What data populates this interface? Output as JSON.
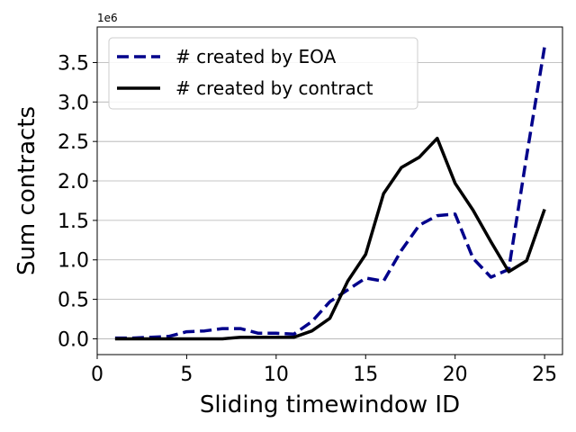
{
  "chart_data": {
    "type": "line",
    "xlabel": "Sliding timewindow ID",
    "ylabel": "Sum contracts",
    "y_offset_label": "1e6",
    "y_scale_factor": 1000000,
    "xlim": [
      0,
      26
    ],
    "ylim": [
      -0.2,
      3.95
    ],
    "x_ticks": [
      0,
      5,
      10,
      15,
      20,
      25
    ],
    "y_ticks": [
      0.0,
      0.5,
      1.0,
      1.5,
      2.0,
      2.5,
      3.0,
      3.5
    ],
    "x_tick_labels": [
      "0",
      "5",
      "10",
      "15",
      "20",
      "25"
    ],
    "y_tick_labels": [
      "0.0",
      "0.5",
      "1.0",
      "1.5",
      "2.0",
      "2.5",
      "3.0",
      "3.5"
    ],
    "grid": "horizontal",
    "legend_position": "top-left",
    "x": [
      1,
      2,
      3,
      4,
      5,
      6,
      7,
      8,
      9,
      10,
      11,
      12,
      13,
      14,
      15,
      16,
      17,
      18,
      19,
      20,
      21,
      22,
      23,
      24,
      25
    ],
    "series": [
      {
        "name": "# created by EOA",
        "color": "#00008b",
        "style": "dashed",
        "values": [
          0.01,
          0.01,
          0.02,
          0.03,
          0.09,
          0.1,
          0.13,
          0.13,
          0.07,
          0.07,
          0.06,
          0.22,
          0.47,
          0.62,
          0.77,
          0.73,
          1.12,
          1.44,
          1.56,
          1.58,
          1.02,
          0.78,
          0.88,
          2.32,
          3.7
        ]
      },
      {
        "name": "# created by contract",
        "color": "#000000",
        "style": "solid",
        "values": [
          0.0,
          0.0,
          0.0,
          0.0,
          0.0,
          0.0,
          0.0,
          0.02,
          0.02,
          0.02,
          0.02,
          0.1,
          0.26,
          0.73,
          1.07,
          1.84,
          2.17,
          2.3,
          2.54,
          1.97,
          1.63,
          1.23,
          0.85,
          0.99,
          1.64
        ]
      }
    ]
  }
}
